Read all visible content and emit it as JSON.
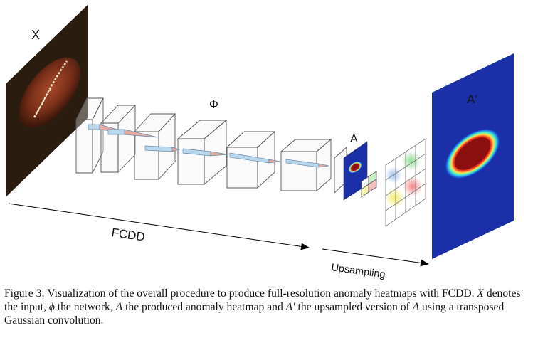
{
  "labels": {
    "input": "X",
    "network": "Φ",
    "heatmap": "A",
    "upsampled": "A‘",
    "fcdd": "FCDD",
    "upsampling": "Upsampling"
  },
  "caption": {
    "part1": "Figure 3: Visualization of the overall procedure to produce full-resolution anomaly heatmaps with FCDD. ",
    "x": "X",
    "part2": " denotes the input, ",
    "phi": "ϕ",
    "part3": " the network, ",
    "a": "A",
    "part4": " the produced anomaly heatmap and ",
    "aprime": "A′",
    "part5": " the upsampled version of ",
    "a2": "A",
    "part6": " using a transposed Gaussian convolution."
  },
  "colors": {
    "heatmap_bg": "#1a2fa8",
    "heatmap_hot": "#8b0f0f",
    "input_bg": "#2a1d10",
    "arrow": "#000000"
  },
  "icons": [
    "input-image",
    "network-layer-blocks",
    "heatmap-small",
    "gaussian-kernel-grid",
    "heatmap-large"
  ]
}
